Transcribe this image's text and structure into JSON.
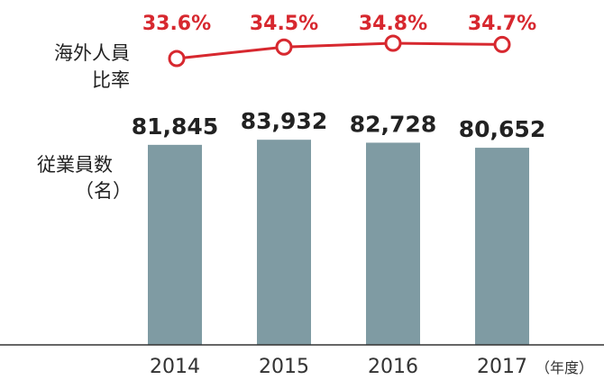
{
  "chart_data": {
    "type": "bar",
    "categories": [
      "2014",
      "2015",
      "2016",
      "2017"
    ],
    "x_unit": "（年度）",
    "ylabel": [
      "従業員数",
      "（名）"
    ],
    "values": [
      81845,
      83932,
      82728,
      80652
    ],
    "value_labels": [
      "81,845",
      "83,932",
      "82,728",
      "80,652"
    ],
    "ylim": [
      0,
      84000
    ],
    "grid": false,
    "overlay_line": {
      "label": [
        "海外人員",
        "比率"
      ],
      "values": [
        33.6,
        34.5,
        34.8,
        34.7
      ],
      "value_labels": [
        "33.6%",
        "34.5%",
        "34.8%",
        "34.7%"
      ],
      "color": "#d7282f"
    },
    "colors": {
      "bar": "#7f9ba3",
      "line": "#d7282f",
      "axis": "#333333"
    }
  }
}
